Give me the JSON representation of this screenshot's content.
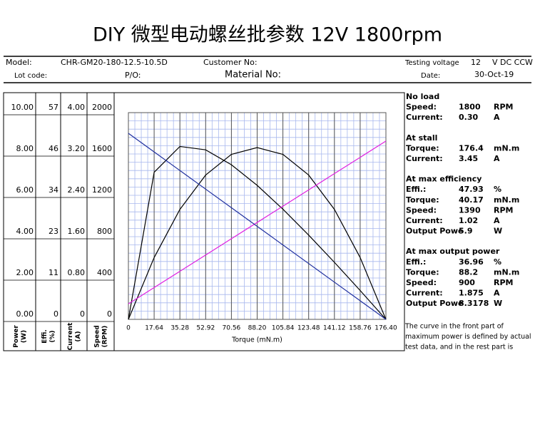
{
  "header": {
    "title": "DIY 微型电动螺丝批参数 12V 1800rpm",
    "model_label": "Model:",
    "model": "CHR-GM20-180-12.5-10.5D",
    "customer_label": "Customer No:",
    "voltage_label": "Testing voltage",
    "voltage": "12",
    "voltage_unit": "V DC CCW",
    "lot_label": "Lot code:",
    "po_label": "P/O:",
    "material_label": "Material No:",
    "date_label": "Date:",
    "date": "30-Oct-19"
  },
  "chart_data": {
    "type": "line",
    "xlabel": "Torque (mN.m)",
    "xlim": [
      0,
      176.4
    ],
    "xticks": [
      0,
      17.64,
      35.28,
      52.92,
      70.56,
      {
        "value": 88.2,
        "label": "88.20"
      },
      105.84,
      123.48,
      141.12,
      158.76,
      {
        "value": 176.4,
        "label": "176.40"
      }
    ],
    "x": [
      0,
      17.64,
      35.28,
      52.92,
      70.56,
      88.2,
      105.84,
      123.48,
      141.12,
      158.76,
      176.4
    ],
    "grid": true,
    "axes": [
      {
        "label": [
          "Power",
          "(W)"
        ],
        "ylim": [
          0,
          10
        ],
        "yticks": [
          {
            "value": 0,
            "label": "0.00"
          },
          {
            "value": 2,
            "label": "2.00"
          },
          {
            "value": 4,
            "label": "4.00"
          },
          {
            "value": 6,
            "label": "6.00"
          },
          {
            "value": 8,
            "label": "8.00"
          },
          {
            "value": 10,
            "label": "10.00"
          }
        ]
      },
      {
        "label": [
          "Effi.",
          "(%)"
        ],
        "ylim": [
          0,
          57
        ],
        "yticks": [
          0,
          {
            "value": 11.4,
            "label": "11"
          },
          {
            "value": 22.8,
            "label": "23"
          },
          {
            "value": 34.2,
            "label": "34"
          },
          {
            "value": 45.6,
            "label": "46"
          },
          57
        ]
      },
      {
        "label": [
          "Current",
          "(A)"
        ],
        "ylim": [
          0,
          4
        ],
        "yticks": [
          0,
          {
            "value": 0.8,
            "label": "0.80"
          },
          {
            "value": 1.6,
            "label": "1.60"
          },
          {
            "value": 2.4,
            "label": "2.40"
          },
          {
            "value": 3.2,
            "label": "3.20"
          },
          {
            "value": 4,
            "label": "4.00"
          }
        ]
      },
      {
        "label": [
          "Speed",
          "(RPM)"
        ],
        "ylim": [
          0,
          2000
        ],
        "yticks": [
          0,
          400,
          800,
          1200,
          1600,
          2000
        ]
      }
    ],
    "series": [
      {
        "name": "Power",
        "axis": 0,
        "color": "#000000",
        "values": [
          0,
          2.99,
          5.32,
          6.98,
          7.98,
          8.31,
          7.98,
          6.98,
          5.32,
          2.99,
          0
        ]
      },
      {
        "name": "Efficiency",
        "axis": 1,
        "color": "#000000",
        "values": [
          0,
          40.55,
          47.67,
          46.74,
          42.63,
          36.95,
          30.37,
          23.23,
          15.72,
          7.96,
          0
        ]
      },
      {
        "name": "Current",
        "axis": 2,
        "color": "#e020e0",
        "values": [
          0.3,
          0.615,
          0.93,
          1.245,
          1.56,
          1.875,
          2.19,
          2.505,
          2.82,
          3.135,
          3.45
        ]
      },
      {
        "name": "Speed",
        "axis": 3,
        "color": "#1f2f9f",
        "values": [
          1800,
          1620,
          1440,
          1260,
          1080,
          900,
          720,
          540,
          360,
          180,
          0
        ]
      }
    ]
  },
  "panel": {
    "sections": [
      {
        "title": "No load",
        "rows": [
          [
            "Speed:",
            "1800",
            "RPM"
          ],
          [
            "Current:",
            "0.30",
            "A"
          ]
        ]
      },
      {
        "title": "At stall",
        "rows": [
          [
            "Torque:",
            "176.4",
            "mN.m"
          ],
          [
            "Current:",
            "3.45",
            "A"
          ]
        ]
      },
      {
        "title": "At max efficiency",
        "rows": [
          [
            "Effi.:",
            "47.93",
            "%"
          ],
          [
            "Torque:",
            "40.17",
            "mN.m"
          ],
          [
            "Speed:",
            "1390",
            "RPM"
          ],
          [
            "Current:",
            "1.02",
            "A"
          ],
          [
            "Output Powe",
            "5.9",
            "W"
          ]
        ]
      },
      {
        "title": "At max output power",
        "rows": [
          [
            "Effi.:",
            "36.96",
            "%"
          ],
          [
            "Torque:",
            "88.2",
            "mN.m"
          ],
          [
            "Speed:",
            "900",
            "RPM"
          ],
          [
            "Current:",
            "1.875",
            "A"
          ],
          [
            "Output Powe",
            "8.3178",
            "W"
          ]
        ]
      }
    ],
    "note": [
      "The curve in the front part of",
      "maximum power is defined by actual",
      "test data, and in the rest part is"
    ]
  }
}
